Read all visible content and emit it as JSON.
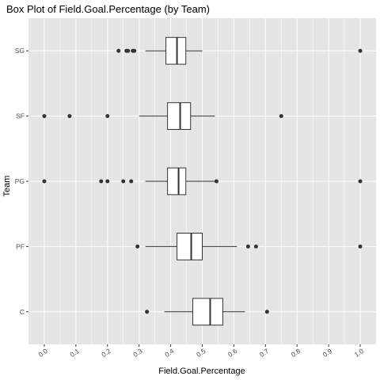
{
  "chart_data": {
    "type": "boxplot",
    "orientation": "horizontal",
    "title": "Box Plot of Field.Goal.Percentage (by Team)",
    "xlabel": "Field.Goal.Percentage",
    "ylabel": "Team",
    "xlim": [
      -0.05,
      1.05
    ],
    "xticks": [
      "0.0",
      "0.1",
      "0.2",
      "0.3",
      "0.4",
      "0.5",
      "0.6",
      "0.7",
      "0.8",
      "0.9",
      "1.0"
    ],
    "xtick_values": [
      0,
      0.1,
      0.2,
      0.3,
      0.4,
      0.5,
      0.6,
      0.7,
      0.8,
      0.9,
      1.0
    ],
    "grid": true,
    "background": "#e5e5e5",
    "grid_color": "#ffffff",
    "box_fill": "#ffffff",
    "box_stroke": "#333333",
    "outlier_color": "#333333",
    "categories": [
      "C",
      "PF",
      "PG",
      "SF",
      "SG"
    ],
    "boxes": [
      {
        "team": "C",
        "whisker_low": 0.38,
        "q1": 0.47,
        "median": 0.525,
        "q3": 0.565,
        "whisker_high": 0.635,
        "outliers": [
          0.325,
          0.705
        ]
      },
      {
        "team": "PF",
        "whisker_low": 0.32,
        "q1": 0.42,
        "median": 0.465,
        "q3": 0.5,
        "whisker_high": 0.61,
        "outliers": [
          0.295,
          0.645,
          0.67,
          1.0
        ]
      },
      {
        "team": "PG",
        "whisker_low": 0.32,
        "q1": 0.39,
        "median": 0.425,
        "q3": 0.448,
        "whisker_high": 0.54,
        "outliers": [
          0.0,
          0.18,
          0.2,
          0.25,
          0.275,
          0.545,
          1.0
        ]
      },
      {
        "team": "SF",
        "whisker_low": 0.3,
        "q1": 0.39,
        "median": 0.43,
        "q3": 0.463,
        "whisker_high": 0.54,
        "outliers": [
          0.0,
          0.08,
          0.2,
          0.75
        ]
      },
      {
        "team": "SG",
        "whisker_low": 0.32,
        "q1": 0.385,
        "median": 0.42,
        "q3": 0.448,
        "whisker_high": 0.5,
        "outliers": [
          0.235,
          0.26,
          0.265,
          0.28,
          0.285,
          1.0
        ]
      }
    ]
  }
}
